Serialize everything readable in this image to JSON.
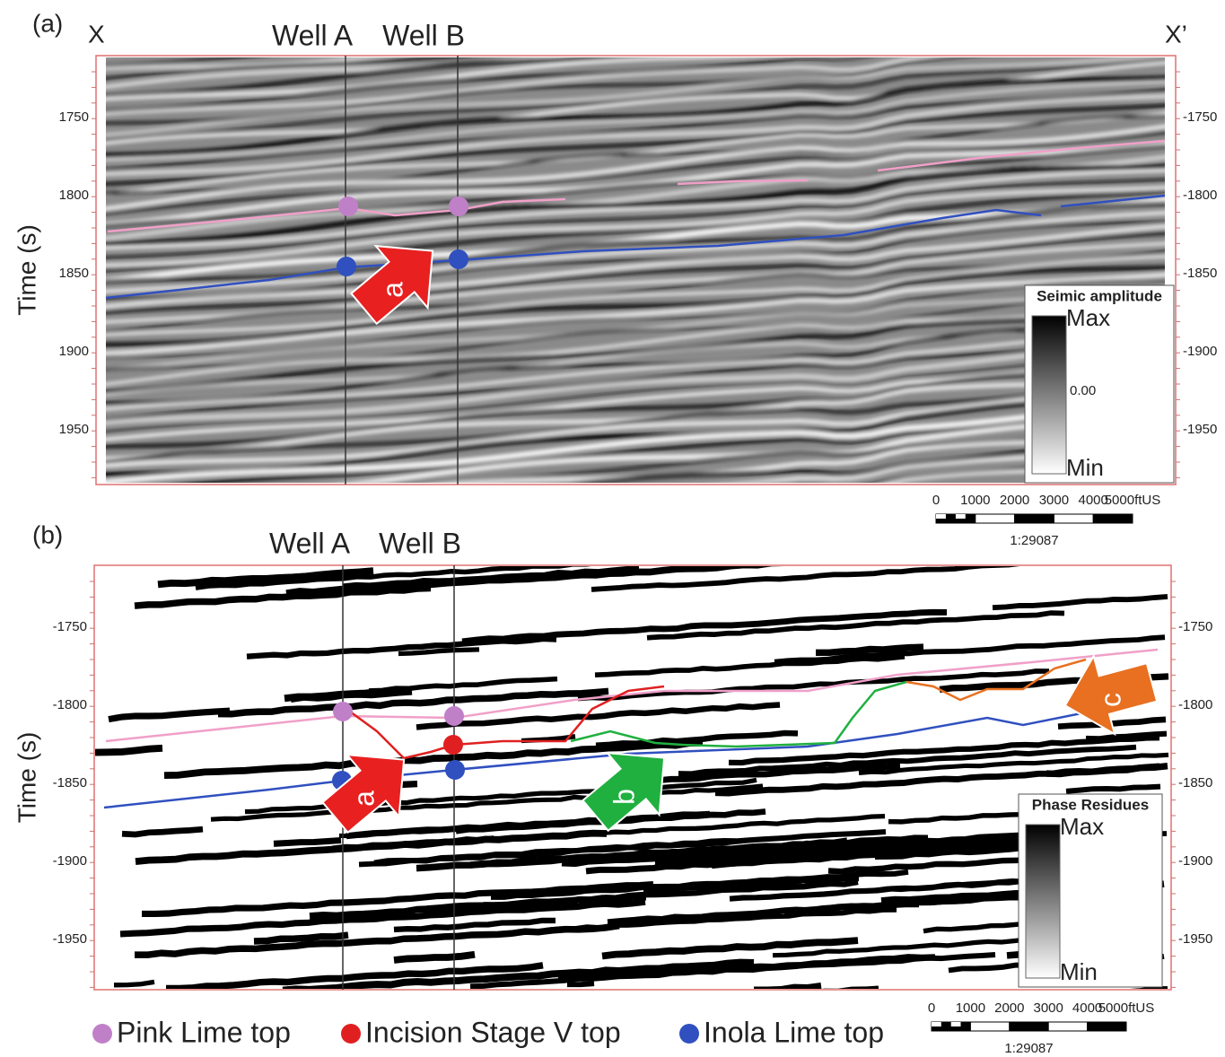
{
  "panels": [
    {
      "label": "(a)",
      "left_end": "X",
      "right_end": "X’",
      "wells": [
        "Well A",
        "Well B"
      ],
      "y_axis_label": "Time (s)",
      "left_ticks": [
        "1750",
        "1800",
        "1850",
        "1900",
        "1950"
      ],
      "right_ticks": [
        "-1750",
        "-1800",
        "-1850",
        "-1900",
        "-1950"
      ],
      "colorbar": {
        "title": "Seimic amplitude",
        "max": "Max",
        "mid": "0.00",
        "min": "Min"
      },
      "scale_bar": {
        "ticks": [
          "0",
          "1000",
          "2000",
          "3000",
          "4000",
          "5000ftUS"
        ],
        "ratio": "1:29087"
      },
      "arrows": [
        "a"
      ]
    },
    {
      "label": "(b)",
      "wells": [
        "Well A",
        "Well B"
      ],
      "y_axis_label": "Time (s)",
      "left_ticks": [
        "-1750",
        "-1800",
        "-1850",
        "-1900",
        "-1950"
      ],
      "right_ticks": [
        "-1750",
        "-1800",
        "-1850",
        "-1900",
        "-1950"
      ],
      "colorbar": {
        "title": "Phase Residues",
        "max": "Max",
        "min": "Min"
      },
      "scale_bar": {
        "ticks": [
          "0",
          "1000",
          "2000",
          "3000",
          "4000",
          "5000ftUS"
        ],
        "ratio": "1:29087"
      },
      "arrows": [
        "a",
        "b",
        "c"
      ]
    }
  ],
  "legend": [
    "Pink Lime top",
    "Incision Stage V top",
    "Inola Lime top"
  ]
}
